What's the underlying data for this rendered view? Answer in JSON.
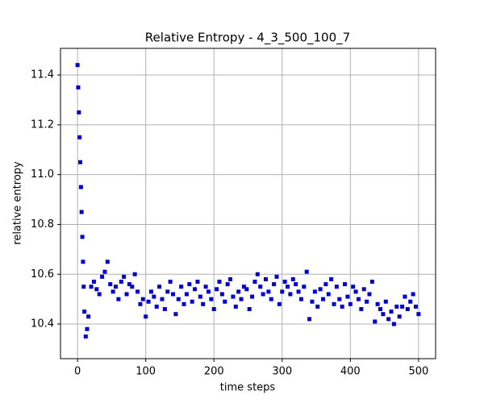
{
  "chart_data": {
    "type": "scatter",
    "title": "Relative Entropy - 4_3_500_100_7",
    "x_label": "time steps",
    "y_label": "relative entropy",
    "color": "#0000cc",
    "grid": true,
    "xlim": [
      -25,
      525
    ],
    "ylim": [
      10.261,
      11.507
    ],
    "xticks": [
      0,
      100,
      200,
      300,
      400,
      500
    ],
    "yticks": [
      10.4,
      10.6,
      10.8,
      {
        "value": 11,
        "label": "11.0"
      },
      11.2,
      11.4
    ],
    "x": [
      0,
      1,
      2,
      3,
      4,
      5,
      6,
      7,
      8,
      9,
      10,
      12,
      14,
      16,
      20,
      24,
      28,
      32,
      36,
      40,
      44,
      48,
      52,
      56,
      60,
      64,
      68,
      72,
      76,
      80,
      84,
      88,
      92,
      96,
      100,
      104,
      108,
      112,
      116,
      120,
      124,
      128,
      132,
      136,
      140,
      144,
      148,
      152,
      156,
      160,
      164,
      168,
      172,
      176,
      180,
      184,
      188,
      192,
      196,
      200,
      204,
      208,
      212,
      216,
      220,
      224,
      228,
      232,
      236,
      240,
      244,
      248,
      252,
      256,
      260,
      264,
      268,
      272,
      276,
      280,
      284,
      288,
      292,
      296,
      300,
      304,
      308,
      312,
      316,
      320,
      324,
      328,
      332,
      336,
      340,
      344,
      348,
      352,
      356,
      360,
      364,
      368,
      372,
      376,
      380,
      384,
      388,
      392,
      396,
      400,
      404,
      408,
      412,
      416,
      420,
      424,
      428,
      432,
      436,
      440,
      444,
      448,
      452,
      456,
      460,
      464,
      468,
      472,
      476,
      480,
      484,
      488,
      492,
      496,
      500
    ],
    "values": [
      11.44,
      11.35,
      11.25,
      11.15,
      11.05,
      10.95,
      10.85,
      10.75,
      10.65,
      10.55,
      10.45,
      10.35,
      10.38,
      10.43,
      10.55,
      10.57,
      10.54,
      10.52,
      10.59,
      10.61,
      10.65,
      10.56,
      10.53,
      10.55,
      10.5,
      10.57,
      10.59,
      10.52,
      10.56,
      10.55,
      10.6,
      10.53,
      10.48,
      10.5,
      10.43,
      10.49,
      10.53,
      10.51,
      10.47,
      10.55,
      10.5,
      10.46,
      10.53,
      10.57,
      10.52,
      10.44,
      10.5,
      10.55,
      10.48,
      10.52,
      10.56,
      10.49,
      10.54,
      10.57,
      10.51,
      10.48,
      10.55,
      10.53,
      10.5,
      10.46,
      10.54,
      10.57,
      10.52,
      10.49,
      10.56,
      10.58,
      10.51,
      10.47,
      10.53,
      10.5,
      10.55,
      10.54,
      10.46,
      10.51,
      10.57,
      10.6,
      10.55,
      10.52,
      10.58,
      10.53,
      10.5,
      10.56,
      10.59,
      10.48,
      10.53,
      10.57,
      10.55,
      10.52,
      10.58,
      10.56,
      10.53,
      10.5,
      10.55,
      10.61,
      10.42,
      10.49,
      10.53,
      10.47,
      10.54,
      10.5,
      10.56,
      10.52,
      10.58,
      10.48,
      10.55,
      10.5,
      10.47,
      10.56,
      10.51,
      10.48,
      10.55,
      10.53,
      10.5,
      10.46,
      10.54,
      10.49,
      10.52,
      10.57,
      10.41,
      10.48,
      10.46,
      10.44,
      10.49,
      10.42,
      10.45,
      10.4,
      10.47,
      10.43,
      10.47,
      10.51,
      10.46,
      10.49,
      10.52,
      10.47,
      10.44
    ]
  }
}
